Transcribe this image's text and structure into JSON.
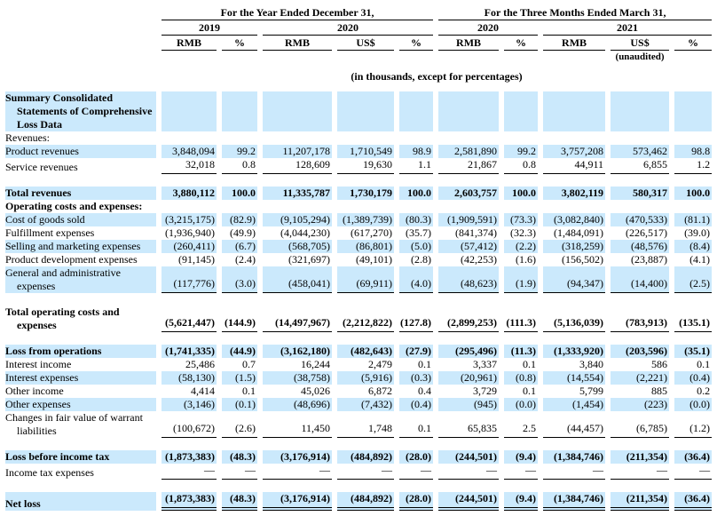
{
  "colors": {
    "stripe": "#cbe9fc"
  },
  "header": {
    "group1": "For the Year Ended December 31,",
    "group2": "For the Three Months Ended March 31,",
    "years": [
      "2019",
      "2020",
      "2020",
      "2021"
    ],
    "cols": [
      "RMB",
      "%",
      "RMB",
      "US$",
      "%",
      "RMB",
      "%",
      "RMB",
      "US$",
      "%"
    ],
    "unaudited": "(unaudited)",
    "note": "(in thousands, except for percentages)"
  },
  "rows": [
    {
      "lines": [
        "Summary Consolidated",
        "Statements of Comprehensive",
        "Loss Data"
      ],
      "bold": true,
      "stripe": true,
      "values": null
    },
    {
      "lines": [
        "Revenues:"
      ],
      "bold": false,
      "stripe": false,
      "values": null
    },
    {
      "lines": [
        "Product revenues"
      ],
      "bold": false,
      "stripe": true,
      "values": [
        "3,848,094",
        "99.2",
        "11,207,178",
        "1,710,549",
        "98.9",
        "2,581,890",
        "99.2",
        "3,757,208",
        "573,462",
        "98.8"
      ]
    },
    {
      "lines": [
        "Service revenues"
      ],
      "bold": false,
      "stripe": false,
      "underline": "single",
      "values": [
        "32,018",
        "0.8",
        "128,609",
        "19,630",
        "1.1",
        "21,867",
        "0.8",
        "44,911",
        "6,855",
        "1.2"
      ]
    },
    {
      "spacer": true
    },
    {
      "lines": [
        "Total revenues"
      ],
      "bold": true,
      "stripe": true,
      "values": [
        "3,880,112",
        "100.0",
        "11,335,787",
        "1,730,179",
        "100.0",
        "2,603,757",
        "100.0",
        "3,802,119",
        "580,317",
        "100.0"
      ]
    },
    {
      "lines": [
        "Operating costs and expenses:"
      ],
      "bold": true,
      "stripe": false,
      "values": null
    },
    {
      "lines": [
        "Cost of goods sold"
      ],
      "bold": false,
      "stripe": true,
      "values": [
        "(3,215,175)",
        "(82.9)",
        "(9,105,294)",
        "(1,389,739)",
        "(80.3)",
        "(1,909,591)",
        "(73.3)",
        "(3,082,840)",
        "(470,533)",
        "(81.1)"
      ]
    },
    {
      "lines": [
        "Fulfillment expenses"
      ],
      "bold": false,
      "stripe": false,
      "values": [
        "(1,936,940)",
        "(49.9)",
        "(4,044,230)",
        "(617,270)",
        "(35.7)",
        "(841,374)",
        "(32.3)",
        "(1,484,091)",
        "(226,517)",
        "(39.0)"
      ]
    },
    {
      "lines": [
        "Selling and marketing expenses"
      ],
      "bold": false,
      "stripe": true,
      "values": [
        "(260,411)",
        "(6.7)",
        "(568,705)",
        "(86,801)",
        "(5.0)",
        "(57,412)",
        "(2.2)",
        "(318,259)",
        "(48,576)",
        "(8.4)"
      ]
    },
    {
      "lines": [
        "Product development expenses"
      ],
      "bold": false,
      "stripe": false,
      "values": [
        "(91,145)",
        "(2.4)",
        "(321,697)",
        "(49,101)",
        "(2.8)",
        "(42,253)",
        "(1.6)",
        "(156,502)",
        "(23,887)",
        "(4.1)"
      ]
    },
    {
      "lines": [
        "General and administrative",
        "expenses"
      ],
      "bold": false,
      "stripe": true,
      "underline": "single",
      "values": [
        "(117,776)",
        "(3.0)",
        "(458,041)",
        "(69,911)",
        "(4.0)",
        "(48,623)",
        "(1.9)",
        "(94,347)",
        "(14,400)",
        "(2.5)"
      ]
    },
    {
      "spacer": true
    },
    {
      "lines": [
        "Total operating costs and",
        "expenses"
      ],
      "bold": true,
      "stripe": false,
      "underline": "single",
      "values": [
        "(5,621,447)",
        "(144.9)",
        "(14,497,967)",
        "(2,212,822)",
        "(127.8)",
        "(2,899,253)",
        "(111.3)",
        "(5,136,039)",
        "(783,913)",
        "(135.1)"
      ]
    },
    {
      "spacer": true
    },
    {
      "lines": [
        "Loss from operations"
      ],
      "bold": true,
      "stripe": true,
      "values": [
        "(1,741,335)",
        "(44.9)",
        "(3,162,180)",
        "(482,643)",
        "(27.9)",
        "(295,496)",
        "(11.3)",
        "(1,333,920)",
        "(203,596)",
        "(35.1)"
      ]
    },
    {
      "lines": [
        "Interest income"
      ],
      "bold": false,
      "stripe": false,
      "values": [
        "25,486",
        "0.7",
        "16,244",
        "2,479",
        "0.1",
        "3,337",
        "0.1",
        "3,840",
        "586",
        "0.1"
      ]
    },
    {
      "lines": [
        "Interest expenses"
      ],
      "bold": false,
      "stripe": true,
      "values": [
        "(58,130)",
        "(1.5)",
        "(38,758)",
        "(5,916)",
        "(0.3)",
        "(20,961)",
        "(0.8)",
        "(14,554)",
        "(2,221)",
        "(0.4)"
      ]
    },
    {
      "lines": [
        "Other income"
      ],
      "bold": false,
      "stripe": false,
      "values": [
        "4,414",
        "0.1",
        "45,026",
        "6,872",
        "0.4",
        "3,729",
        "0.1",
        "5,799",
        "885",
        "0.2"
      ]
    },
    {
      "lines": [
        "Other expenses"
      ],
      "bold": false,
      "stripe": true,
      "values": [
        "(3,146)",
        "(0.1)",
        "(48,696)",
        "(7,432)",
        "(0.4)",
        "(945)",
        "(0.0)",
        "(1,454)",
        "(223)",
        "(0.0)"
      ]
    },
    {
      "lines": [
        "Changes in fair value of warrant",
        "liabilities"
      ],
      "bold": false,
      "stripe": false,
      "underline": "single",
      "values": [
        "(100,672)",
        "(2.6)",
        "11,450",
        "1,748",
        "0.1",
        "65,835",
        "2.5",
        "(44,457)",
        "(6,785)",
        "(1.2)"
      ]
    },
    {
      "spacer": true
    },
    {
      "lines": [
        "Loss before income tax"
      ],
      "bold": true,
      "stripe": true,
      "values": [
        "(1,873,383)",
        "(48.3)",
        "(3,176,914)",
        "(484,892)",
        "(28.0)",
        "(244,501)",
        "(9.4)",
        "(1,384,746)",
        "(211,354)",
        "(36.4)"
      ]
    },
    {
      "lines": [
        "Income tax expenses"
      ],
      "bold": false,
      "stripe": false,
      "underline": "single",
      "values": [
        "—",
        "—",
        "—",
        "—",
        "—",
        "—",
        "—",
        "—",
        "—",
        "—"
      ]
    },
    {
      "spacer": true
    },
    {
      "lines": [
        "Net loss"
      ],
      "bold": true,
      "stripe": true,
      "underline": "double",
      "values": [
        "(1,873,383)",
        "(48.3)",
        "(3,176,914)",
        "(484,892)",
        "(28.0)",
        "(244,501)",
        "(9.4)",
        "(1,384,746)",
        "(211,354)",
        "(36.4)"
      ]
    }
  ]
}
